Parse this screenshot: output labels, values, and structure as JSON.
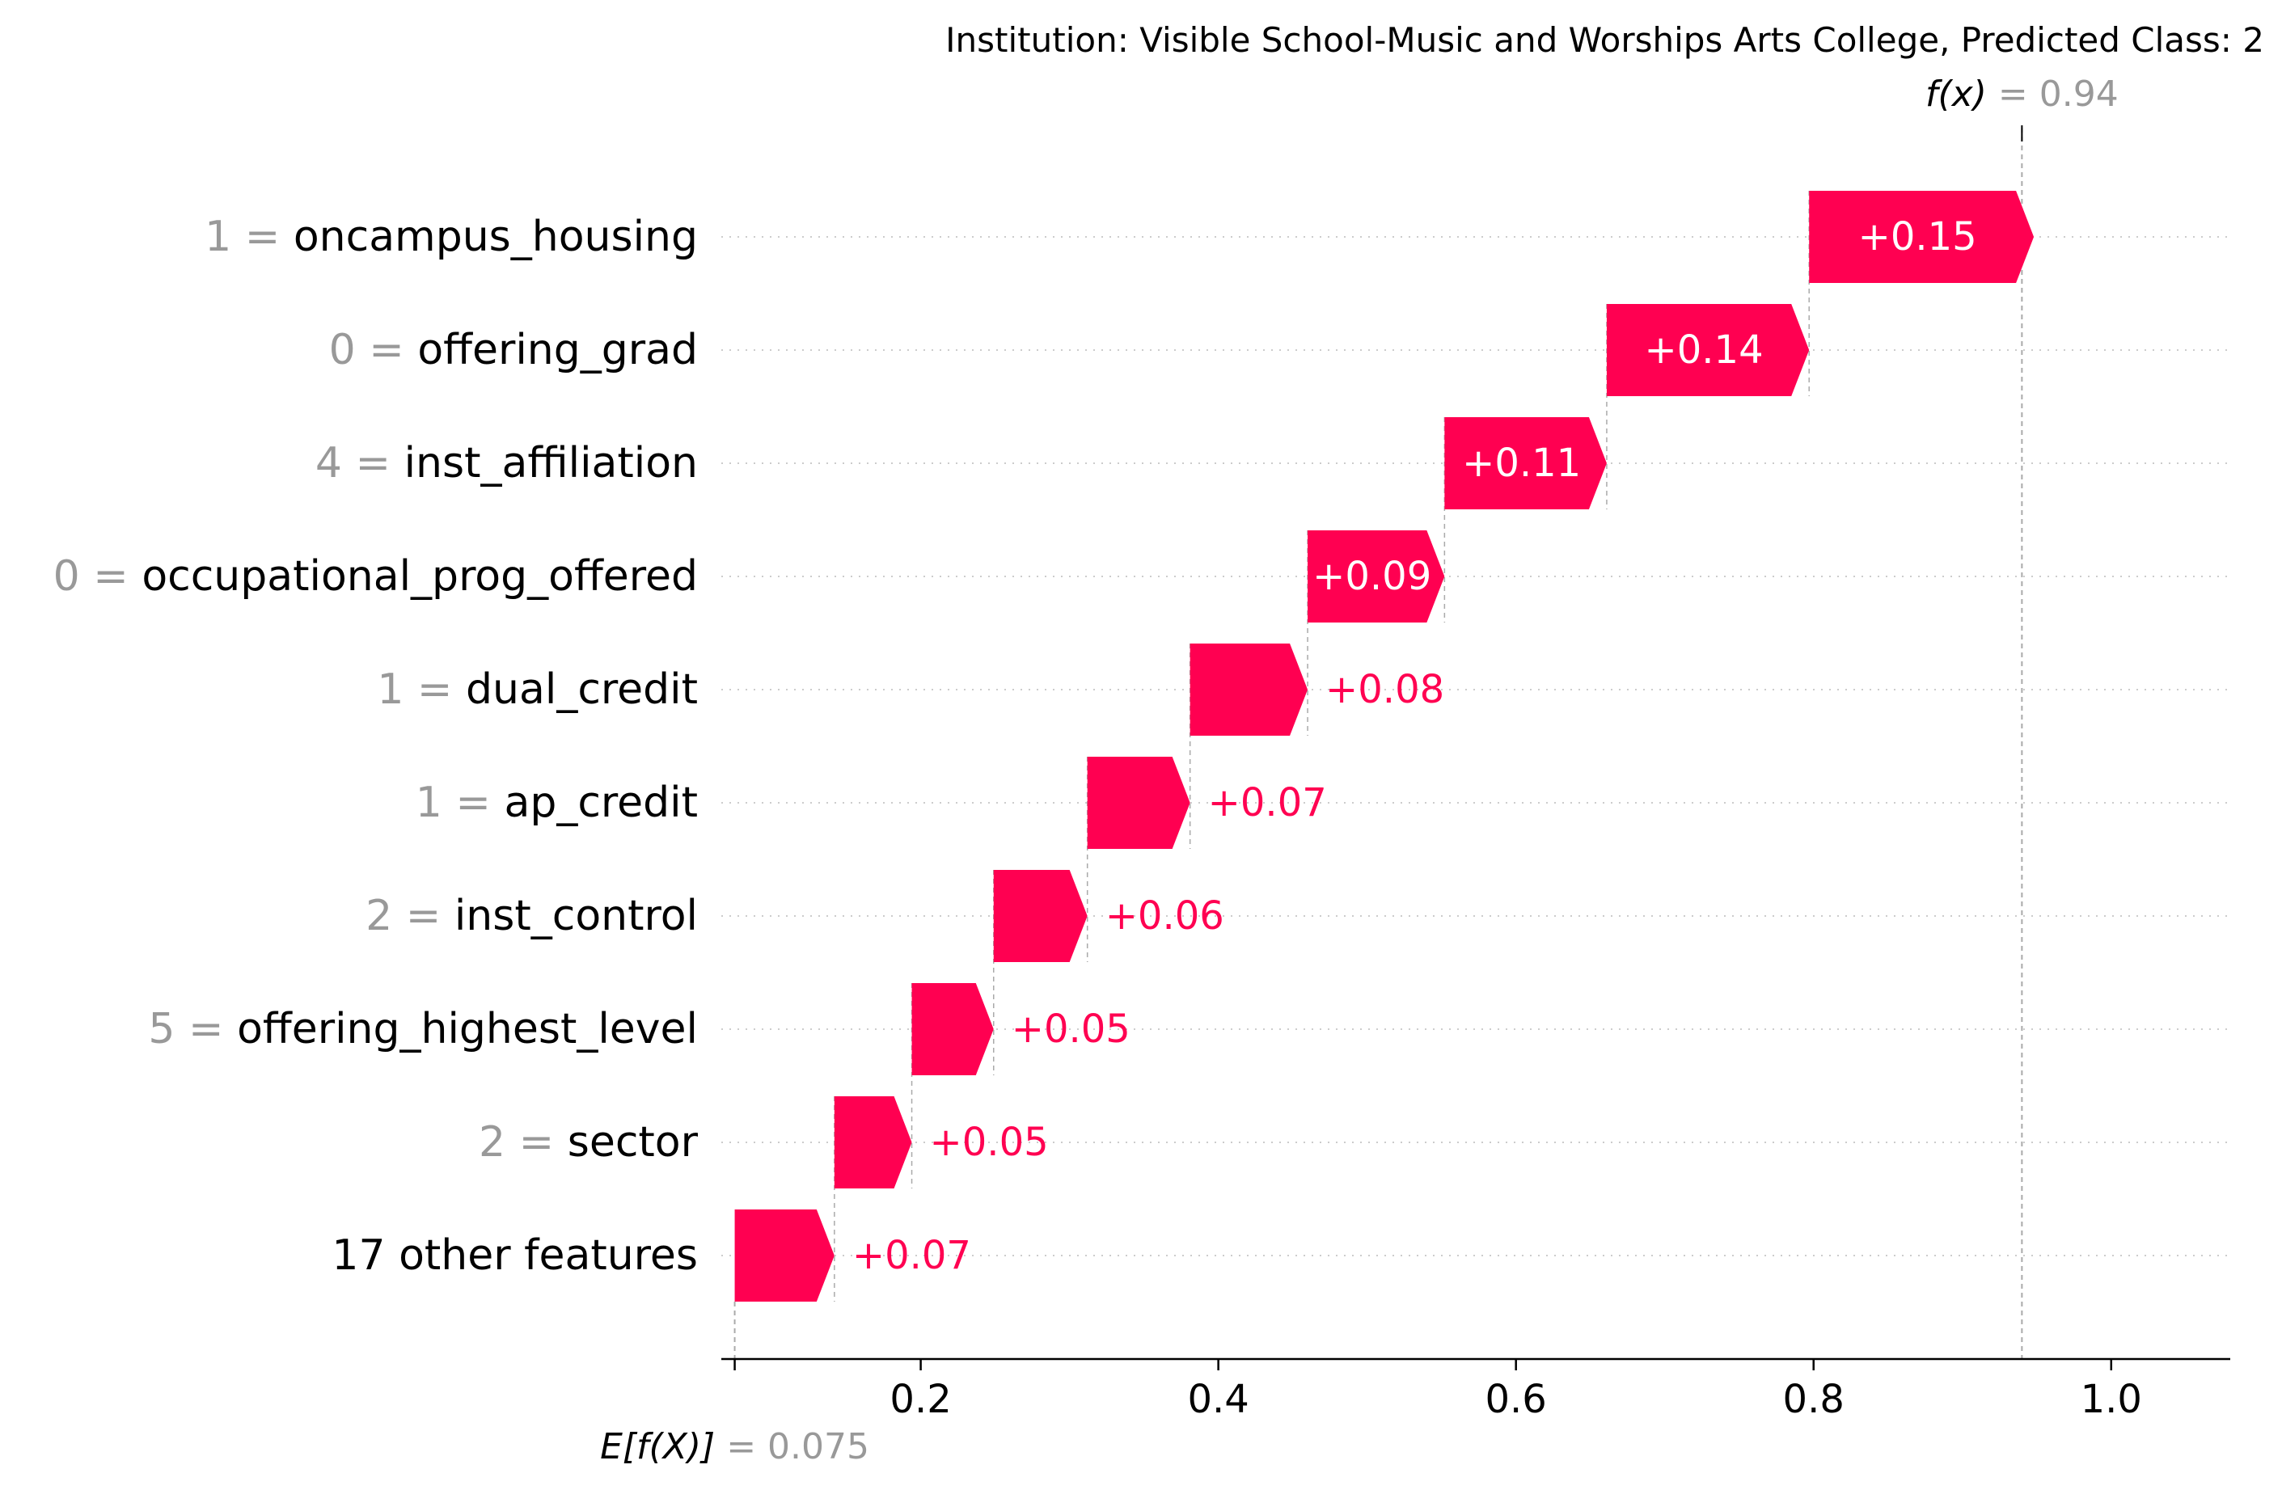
{
  "title": "Institution: Visible School-Music and Worships Arts College, Predicted Class: 2",
  "fx": {
    "label": "f(x)",
    "value_text": "0.94"
  },
  "ex": {
    "label": "E[f(X)]",
    "value_text": "0.075"
  },
  "colors": {
    "positive": "#ff0051",
    "bar_text": "#ffffff",
    "feature_value": "#999999",
    "feature_name": "#000000",
    "gridline": "#cccccc",
    "axis": "#000000"
  },
  "chart_data": {
    "type": "waterfall",
    "title": "Institution: Visible School-Music and Worships Arts College, Predicted Class: 2",
    "base_value": 0.075,
    "prediction": 0.94,
    "xlim": [
      0.066,
      1.08
    ],
    "xticks": [
      0.2,
      0.4,
      0.6,
      0.8,
      1.0
    ],
    "xtick_labels": [
      "0.2",
      "0.4",
      "0.6",
      "0.8",
      "1.0"
    ],
    "features": [
      {
        "value": "1",
        "name": "oncampus_housing",
        "contribution": 0.151,
        "label": "+0.15"
      },
      {
        "value": "0",
        "name": "offering_grad",
        "contribution": 0.136,
        "label": "+0.14"
      },
      {
        "value": "4",
        "name": "inst_affiliation",
        "contribution": 0.109,
        "label": "+0.11"
      },
      {
        "value": "0",
        "name": "occupational_prog_offered",
        "contribution": 0.092,
        "label": "+0.09"
      },
      {
        "value": "1",
        "name": "dual_credit",
        "contribution": 0.079,
        "label": "+0.08"
      },
      {
        "value": "1",
        "name": "ap_credit",
        "contribution": 0.069,
        "label": "+0.07"
      },
      {
        "value": "2",
        "name": "inst_control",
        "contribution": 0.063,
        "label": "+0.06"
      },
      {
        "value": "5",
        "name": "offering_highest_level",
        "contribution": 0.055,
        "label": "+0.05"
      },
      {
        "value": "2",
        "name": "sector",
        "contribution": 0.052,
        "label": "+0.05"
      },
      {
        "value": "",
        "name": "17 other features",
        "contribution": 0.067,
        "label": "+0.07"
      }
    ],
    "grid": true
  }
}
